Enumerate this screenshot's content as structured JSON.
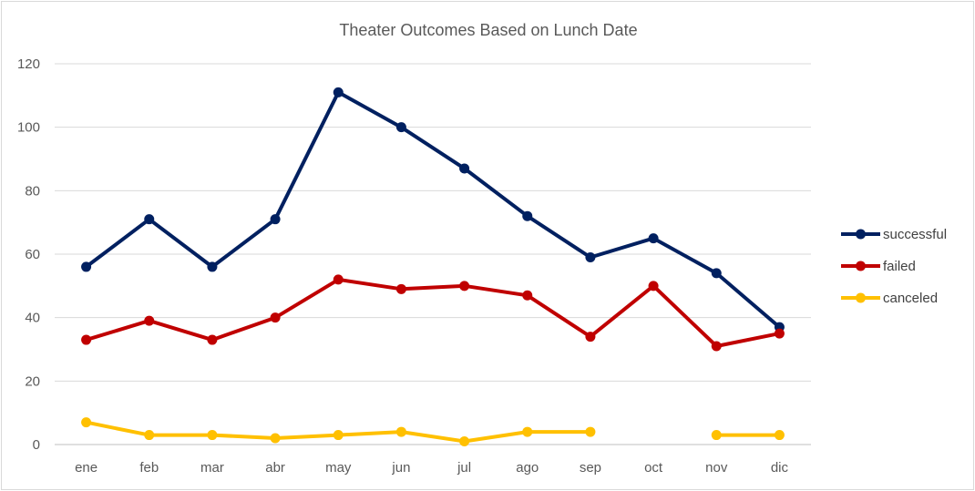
{
  "chart_data": {
    "type": "line",
    "title": "Theater Outcomes Based on Lunch Date",
    "xlabel": "",
    "ylabel": "",
    "categories": [
      "ene",
      "feb",
      "mar",
      "abr",
      "may",
      "jun",
      "jul",
      "ago",
      "sep",
      "oct",
      "nov",
      "dic"
    ],
    "ylim": [
      0,
      120
    ],
    "yticks": [
      0,
      20,
      40,
      60,
      80,
      100,
      120
    ],
    "grid": true,
    "legend_position": "right",
    "series": [
      {
        "name": "successful",
        "color": "#002060",
        "values": [
          56,
          71,
          56,
          71,
          111,
          100,
          87,
          72,
          59,
          65,
          54,
          37
        ]
      },
      {
        "name": "failed",
        "color": "#C00000",
        "values": [
          33,
          39,
          33,
          40,
          52,
          49,
          50,
          47,
          34,
          50,
          31,
          35
        ]
      },
      {
        "name": "canceled",
        "color": "#FFC000",
        "values": [
          7,
          3,
          3,
          2,
          3,
          4,
          1,
          4,
          4,
          null,
          3,
          3
        ]
      }
    ]
  }
}
